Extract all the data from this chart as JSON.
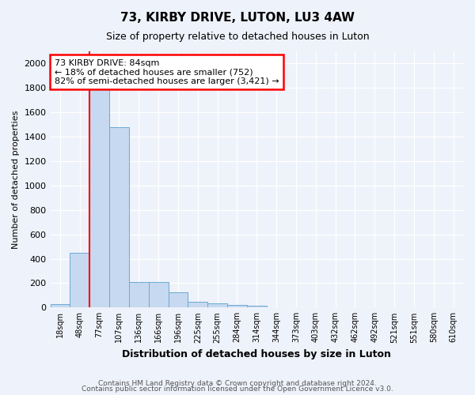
{
  "title": "73, KIRBY DRIVE, LUTON, LU3 4AW",
  "subtitle": "Size of property relative to detached houses in Luton",
  "xlabel": "Distribution of detached houses by size in Luton",
  "ylabel": "Number of detached properties",
  "footnote1": "Contains HM Land Registry data © Crown copyright and database right 2024.",
  "footnote2": "Contains public sector information licensed under the Open Government Licence v3.0.",
  "bin_labels": [
    "18sqm",
    "48sqm",
    "77sqm",
    "107sqm",
    "136sqm",
    "166sqm",
    "196sqm",
    "225sqm",
    "255sqm",
    "284sqm",
    "314sqm",
    "344sqm",
    "373sqm",
    "403sqm",
    "432sqm",
    "462sqm",
    "492sqm",
    "521sqm",
    "551sqm",
    "580sqm",
    "610sqm"
  ],
  "bar_values": [
    30,
    450,
    1900,
    1480,
    210,
    210,
    125,
    50,
    35,
    20,
    15,
    5,
    0,
    0,
    0,
    0,
    0,
    0,
    0,
    0,
    0
  ],
  "bar_color": "#c6d9f0",
  "bar_edgecolor": "#6aaad4",
  "red_line_x": 1.5,
  "annotation_text": "73 KIRBY DRIVE: 84sqm\n← 18% of detached houses are smaller (752)\n82% of semi-detached houses are larger (3,421) →",
  "annotation_box_color": "white",
  "annotation_box_edgecolor": "red",
  "ylim": [
    0,
    2100
  ],
  "yticks": [
    0,
    200,
    400,
    600,
    800,
    1000,
    1200,
    1400,
    1600,
    1800,
    2000
  ],
  "background_color": "#eef2fa",
  "plot_background": "#eef2fa",
  "title_fontsize": 11,
  "subtitle_fontsize": 9
}
